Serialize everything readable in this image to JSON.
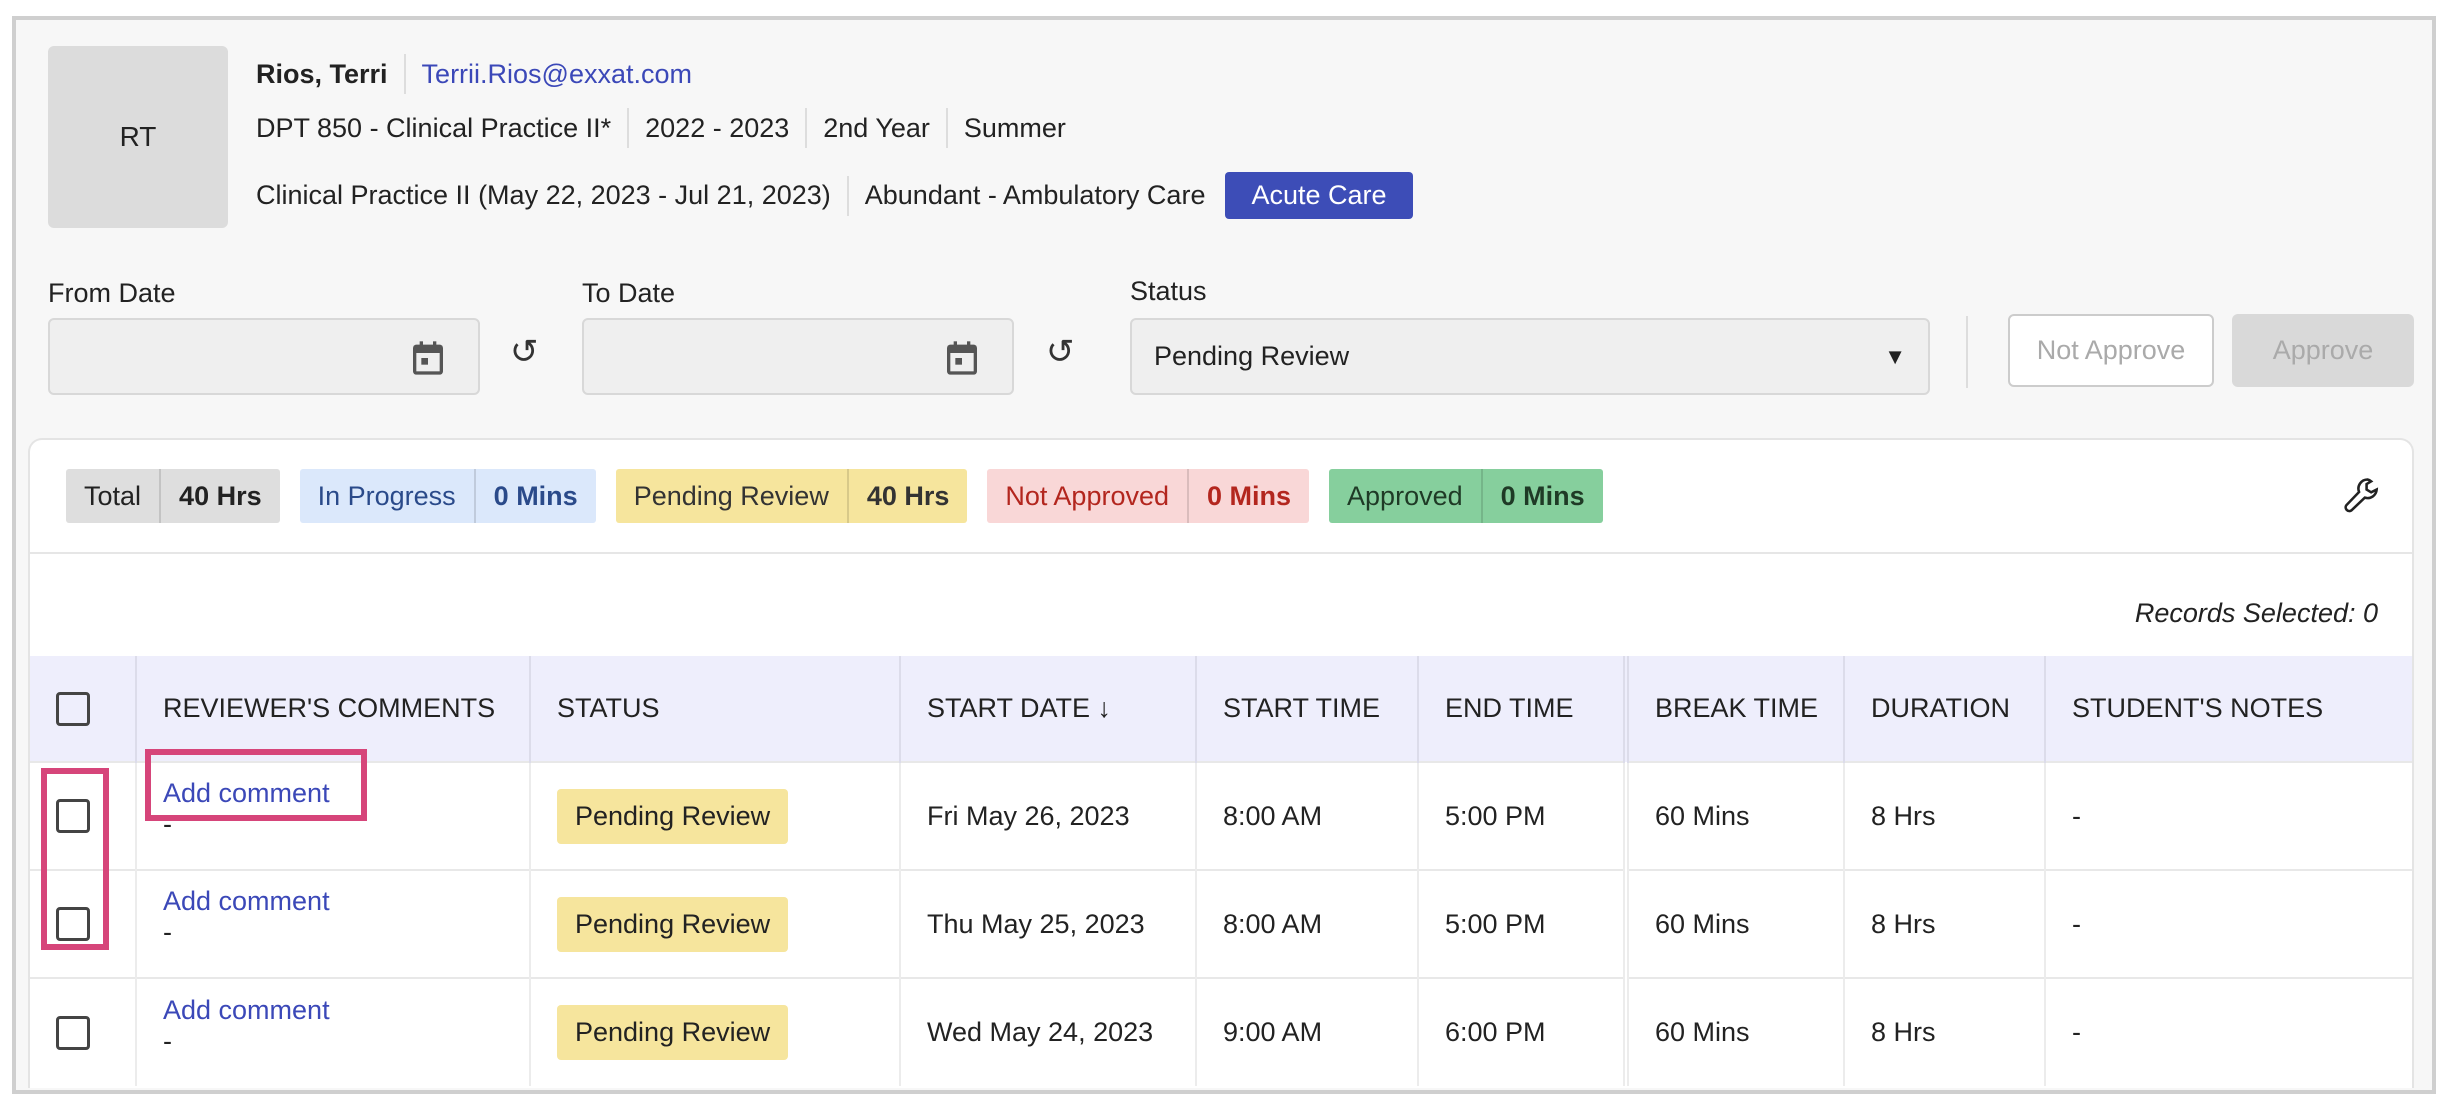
{
  "student": {
    "initials": "RT",
    "name": "Rios, Terri",
    "email": "Terrii.Rios@exxat.com",
    "course": "DPT 850 - Clinical Practice II*",
    "year": "2022 - 2023",
    "level": "2nd Year",
    "term": "Summer",
    "rotation": "Clinical Practice II (May 22, 2023 - Jul 21, 2023)",
    "site": "Abundant - Ambulatory Care",
    "setting": "Acute Care"
  },
  "filters": {
    "from_label": "From Date",
    "from_value": "",
    "to_label": "To Date",
    "to_value": "",
    "status_label": "Status",
    "status_value": "Pending Review"
  },
  "actions": {
    "not_approve": "Not Approve",
    "approve": "Approve"
  },
  "summary": [
    {
      "label": "Total",
      "value": "40 Hrs",
      "bg": "#dedede",
      "color": "#222"
    },
    {
      "label": "In Progress",
      "value": "0 Mins",
      "bg": "#dbe8fb",
      "color": "#2a4a8a"
    },
    {
      "label": "Pending Review",
      "value": "40 Hrs",
      "bg": "#f6e59d",
      "color": "#333"
    },
    {
      "label": "Not Approved",
      "value": "0 Mins",
      "bg": "#f9d7d7",
      "color": "#b3261e"
    },
    {
      "label": "Approved",
      "value": "0 Mins",
      "bg": "#86cf9d",
      "color": "#1f3a26"
    }
  ],
  "records_selected": "Records Selected: 0",
  "table": {
    "headers": [
      "REVIEWER'S COMMENTS",
      "STATUS",
      "START DATE",
      "START TIME",
      "END TIME",
      "BREAK TIME",
      "DURATION",
      "STUDENT'S NOTES"
    ],
    "sort_indicator": "↓",
    "rows": [
      {
        "comment_link": "Add comment",
        "comment": "-",
        "status": "Pending Review",
        "start_date": "Fri May 26, 2023",
        "start_time": "8:00 AM",
        "end_time": "5:00 PM",
        "break_time": "60 Mins",
        "duration": "8 Hrs",
        "notes": "-"
      },
      {
        "comment_link": "Add comment",
        "comment": "-",
        "status": "Pending Review",
        "start_date": "Thu May 25, 2023",
        "start_time": "8:00 AM",
        "end_time": "5:00 PM",
        "break_time": "60 Mins",
        "duration": "8 Hrs",
        "notes": "-"
      },
      {
        "comment_link": "Add comment",
        "comment": "-",
        "status": "Pending Review",
        "start_date": "Wed May 24, 2023",
        "start_time": "9:00 AM",
        "end_time": "6:00 PM",
        "break_time": "60 Mins",
        "duration": "8 Hrs",
        "notes": "-"
      }
    ]
  },
  "highlight_color": "#d6457a"
}
